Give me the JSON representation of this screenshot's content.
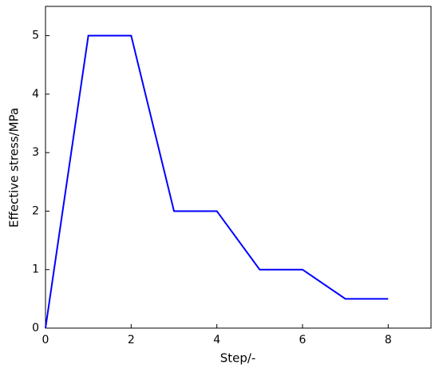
{
  "chart_data": {
    "type": "line",
    "x_label": "Step/-",
    "y_label": "Effective stress/MPa",
    "x": [
      0,
      1,
      2,
      3,
      4,
      5,
      6,
      7,
      8
    ],
    "series": [
      {
        "color": "#0000ff",
        "values": [
          0,
          5,
          5,
          2,
          2,
          1,
          1,
          0.5,
          0.5
        ]
      }
    ],
    "xlim": [
      0,
      9
    ],
    "xticks": [
      0,
      2,
      4,
      6,
      8
    ],
    "ylim": [
      0,
      5.5
    ],
    "yticks": [
      0,
      1,
      2,
      3,
      4,
      5
    ]
  }
}
